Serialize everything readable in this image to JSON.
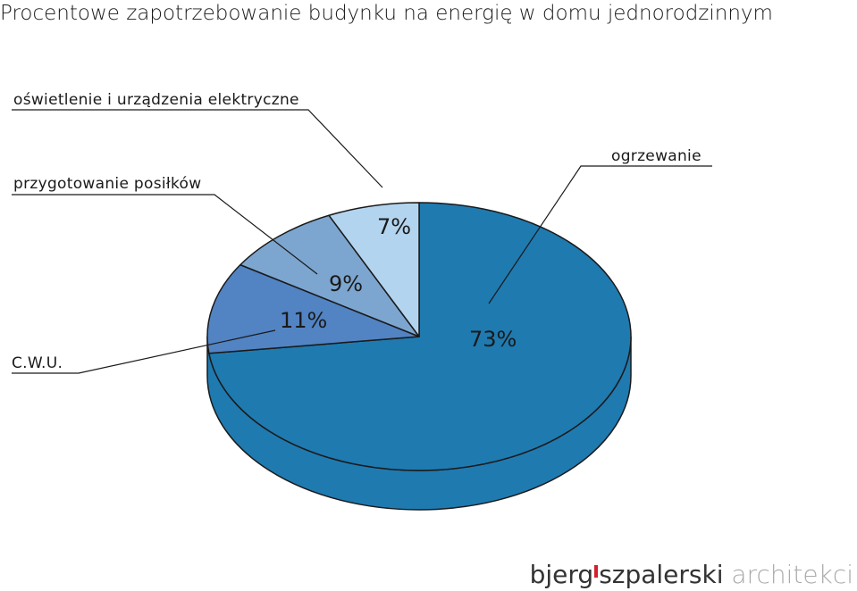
{
  "chart_data": {
    "type": "pie",
    "title": "Procentowe zapotrzebowanie budynku na energię w domu jednorodzinnym",
    "slices": [
      {
        "label": "ogrzewanie",
        "value": 73,
        "value_label": "73%",
        "color": "#1f7ab0"
      },
      {
        "label": "C.W.U.",
        "value": 11,
        "value_label": "11%",
        "color": "#5283c3"
      },
      {
        "label": "przygotowanie posiłków",
        "value": 9,
        "value_label": "9%",
        "color": "#7ca6cf"
      },
      {
        "label": "oświetlenie i urządzenia elektryczne",
        "value": 7,
        "value_label": "7%",
        "color": "#b3d4ee"
      }
    ],
    "style": "3d-pie"
  },
  "logo": {
    "part1": "bjerg",
    "part2": "szpalerski",
    "part3": "architekci",
    "accent_color": "#d4202a"
  }
}
